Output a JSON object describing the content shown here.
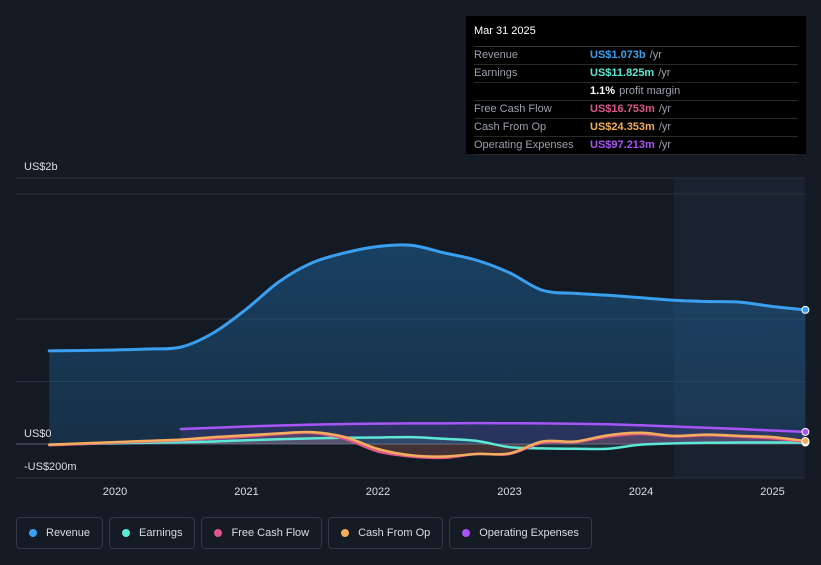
{
  "tooltip": {
    "date": "Mar 31 2025",
    "rows": [
      {
        "label": "Revenue",
        "value": "US$1.073b",
        "unit": "/yr",
        "color": "#3b9ff0"
      },
      {
        "label": "Earnings",
        "value": "US$11.825m",
        "unit": "/yr",
        "color": "#5de8d6"
      },
      {
        "label": "",
        "value": "1.1%",
        "unit": "profit margin",
        "color": "#ffffff"
      },
      {
        "label": "Free Cash Flow",
        "value": "US$16.753m",
        "unit": "/yr",
        "color": "#e0568b"
      },
      {
        "label": "Cash From Op",
        "value": "US$24.353m",
        "unit": "/yr",
        "color": "#f2ae5c"
      },
      {
        "label": "Operating Expenses",
        "value": "US$97.213m",
        "unit": "/yr",
        "color": "#a855f7"
      }
    ]
  },
  "legend": [
    {
      "label": "Revenue",
      "color": "#3b9ff0"
    },
    {
      "label": "Earnings",
      "color": "#5de8d6"
    },
    {
      "label": "Free Cash Flow",
      "color": "#e0568b"
    },
    {
      "label": "Cash From Op",
      "color": "#f2ae5c"
    },
    {
      "label": "Operating Expenses",
      "color": "#a855f7"
    }
  ],
  "chart_data": {
    "type": "area",
    "ylabel_top": "US$2b",
    "ylabel_zero": "US$0",
    "ylabel_bottom": "-US$200m",
    "ylim": [
      -200,
      2000
    ],
    "x_ticks": [
      "2020",
      "2021",
      "2022",
      "2023",
      "2024",
      "2025"
    ],
    "forecast_shade_from": 2024.25,
    "series": [
      {
        "name": "Revenue",
        "color": "#3b9ff0",
        "fill": true,
        "x": [
          2019.5,
          2019.75,
          2020.0,
          2020.25,
          2020.5,
          2020.75,
          2021.0,
          2021.25,
          2021.5,
          2021.75,
          2022.0,
          2022.25,
          2022.5,
          2022.75,
          2023.0,
          2023.25,
          2023.5,
          2023.75,
          2024.0,
          2024.25,
          2024.5,
          2024.75,
          2025.0,
          2025.25
        ],
        "y": [
          745,
          748,
          752,
          760,
          775,
          890,
          1080,
          1300,
          1450,
          1530,
          1580,
          1590,
          1530,
          1470,
          1370,
          1230,
          1205,
          1190,
          1170,
          1150,
          1140,
          1135,
          1100,
          1073
        ]
      },
      {
        "name": "Earnings",
        "color": "#5de8d6",
        "fill": false,
        "x": [
          2019.5,
          2019.75,
          2020.0,
          2020.25,
          2020.5,
          2020.75,
          2021.0,
          2021.25,
          2021.5,
          2021.75,
          2022.0,
          2022.25,
          2022.5,
          2022.75,
          2023.0,
          2023.25,
          2023.5,
          2023.75,
          2024.0,
          2024.25,
          2024.5,
          2024.75,
          2025.0,
          2025.25
        ],
        "y": [
          -5,
          0,
          5,
          10,
          15,
          20,
          30,
          38,
          45,
          50,
          52,
          55,
          42,
          25,
          -25,
          -35,
          -38,
          -38,
          -5,
          5,
          10,
          12,
          12,
          12
        ]
      },
      {
        "name": "Free Cash Flow",
        "color": "#e0568b",
        "fill": false,
        "x": [
          2019.5,
          2019.75,
          2020.0,
          2020.25,
          2020.5,
          2020.75,
          2021.0,
          2021.25,
          2021.5,
          2021.75,
          2022.0,
          2022.25,
          2022.5,
          2022.75,
          2023.0,
          2023.25,
          2023.5,
          2023.75,
          2024.0,
          2024.25,
          2024.5,
          2024.75,
          2025.0,
          2025.25
        ],
        "y": [
          -10,
          0,
          10,
          20,
          30,
          45,
          60,
          80,
          90,
          40,
          -60,
          -100,
          -110,
          -80,
          -80,
          10,
          15,
          60,
          80,
          60,
          70,
          60,
          45,
          17
        ]
      },
      {
        "name": "Cash From Op",
        "color": "#f2ae5c",
        "fill": false,
        "x": [
          2019.5,
          2019.75,
          2020.0,
          2020.25,
          2020.5,
          2020.75,
          2021.0,
          2021.25,
          2021.5,
          2021.75,
          2022.0,
          2022.25,
          2022.5,
          2022.75,
          2023.0,
          2023.25,
          2023.5,
          2023.75,
          2024.0,
          2024.25,
          2024.5,
          2024.75,
          2025.0,
          2025.25
        ],
        "y": [
          -5,
          5,
          15,
          25,
          35,
          55,
          70,
          85,
          95,
          55,
          -40,
          -90,
          -100,
          -80,
          -75,
          20,
          20,
          70,
          90,
          65,
          75,
          65,
          55,
          24
        ]
      },
      {
        "name": "Operating Expenses",
        "color": "#a855f7",
        "fill": false,
        "x": [
          2020.5,
          2020.75,
          2021.0,
          2021.25,
          2021.5,
          2021.75,
          2022.0,
          2022.25,
          2022.5,
          2022.75,
          2023.0,
          2023.25,
          2023.5,
          2023.75,
          2024.0,
          2024.25,
          2024.5,
          2024.75,
          2025.0,
          2025.25
        ],
        "y": [
          120,
          130,
          140,
          148,
          155,
          160,
          163,
          165,
          165,
          167,
          166,
          165,
          162,
          158,
          150,
          140,
          130,
          120,
          108,
          97
        ]
      }
    ]
  }
}
